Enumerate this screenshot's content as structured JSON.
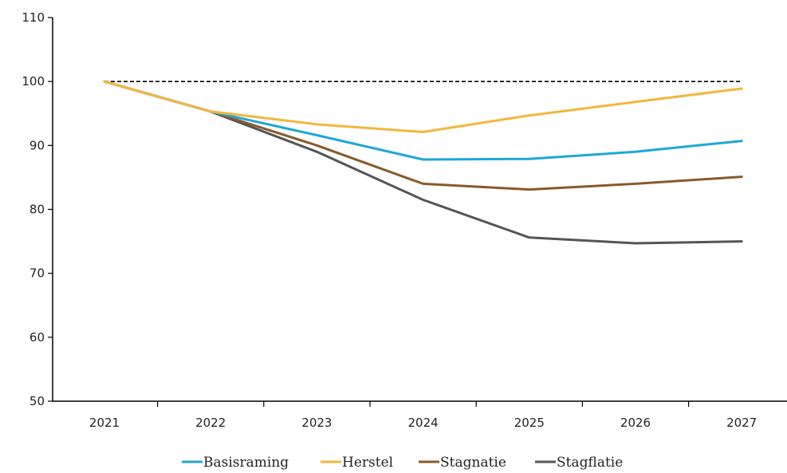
{
  "chart_data": {
    "type": "line",
    "title": "",
    "xlabel": "",
    "ylabel": "",
    "categories": [
      "2021",
      "2022",
      "2023",
      "2024",
      "2025",
      "2026",
      "2027"
    ],
    "ylim": [
      50,
      110
    ],
    "yticks": [
      50,
      60,
      70,
      80,
      90,
      100,
      110
    ],
    "grid": false,
    "legend_position": "bottom",
    "reference_line": {
      "value": 100,
      "style": "dashed",
      "color": "#000000"
    },
    "series": [
      {
        "name": "Basisraming",
        "color": "#1ea7d8",
        "values": [
          100,
          95.3,
          91.6,
          87.8,
          87.9,
          89.0,
          90.7
        ]
      },
      {
        "name": "Herstel",
        "color": "#f3b73d",
        "values": [
          100,
          95.3,
          93.3,
          92.1,
          94.7,
          96.8,
          98.9
        ]
      },
      {
        "name": "Stagnatie",
        "color": "#8a5a2b",
        "values": [
          100,
          95.3,
          90.0,
          84.0,
          83.1,
          84.0,
          85.1
        ]
      },
      {
        "name": "Stagflatie",
        "color": "#555555",
        "values": [
          100,
          95.3,
          89.0,
          81.5,
          75.6,
          74.7,
          75.0
        ]
      }
    ]
  }
}
